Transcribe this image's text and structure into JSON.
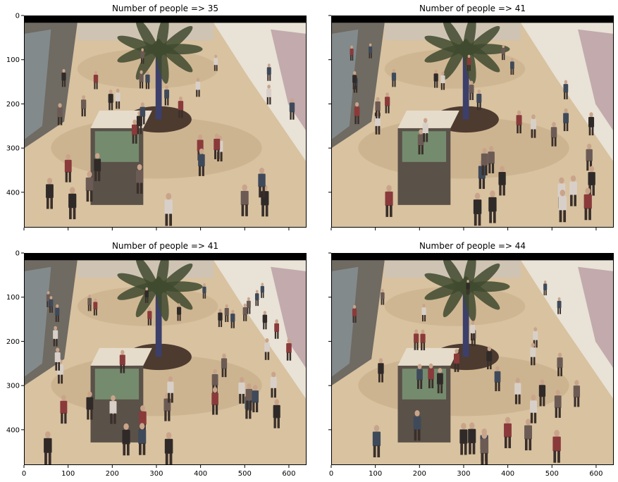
{
  "chart_data": [
    {
      "type": "image",
      "title": "Number of people => 35",
      "xlim": [
        0,
        640
      ],
      "ylim": [
        480,
        0
      ],
      "xticks": [
        0,
        100,
        200,
        300,
        400,
        500,
        600
      ],
      "yticks": [
        0,
        100,
        200,
        300,
        400
      ],
      "show_xticklabels": false,
      "show_yticklabels": true
    },
    {
      "type": "image",
      "title": "Number of people => 41",
      "xlim": [
        0,
        640
      ],
      "ylim": [
        480,
        0
      ],
      "xticks": [
        0,
        100,
        200,
        300,
        400,
        500,
        600
      ],
      "yticks": [
        0,
        100,
        200,
        300,
        400
      ],
      "show_xticklabels": false,
      "show_yticklabels": false
    },
    {
      "type": "image",
      "title": "Number of people => 41",
      "xlim": [
        0,
        640
      ],
      "ylim": [
        480,
        0
      ],
      "xticks": [
        0,
        100,
        200,
        300,
        400,
        500,
        600
      ],
      "yticks": [
        0,
        100,
        200,
        300,
        400
      ],
      "show_xticklabels": true,
      "show_yticklabels": true
    },
    {
      "type": "image",
      "title": "Number of people => 44",
      "xlim": [
        0,
        640
      ],
      "ylim": [
        480,
        0
      ],
      "xticks": [
        0,
        100,
        200,
        300,
        400,
        500,
        600
      ],
      "yticks": [
        0,
        100,
        200,
        300,
        400
      ],
      "show_xticklabels": true,
      "show_yticklabels": false
    }
  ],
  "colors": {
    "floor": "#d8c2a0",
    "floor_dark": "#b99b73",
    "wall": "#e9e2d6",
    "storefront": "#6f6a62",
    "palm": "#3f4a2f",
    "kiosk": "#e6dccb",
    "people": "#3a2f2a",
    "top_band": "#000000"
  }
}
